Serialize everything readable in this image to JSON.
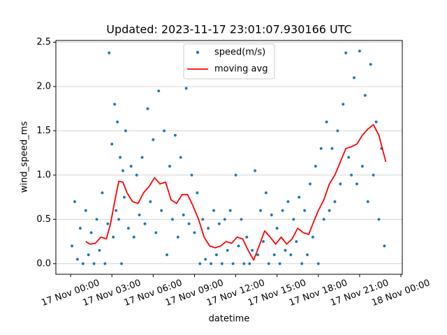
{
  "chart_data": {
    "type": "scatter",
    "title": "Updated: 2023-11-17 23:01:07.930166 UTC",
    "x_label": "datetime",
    "y_label": "wind_speed_ms",
    "xlim": [
      -1.07,
      24.1
    ],
    "ylim": [
      -0.12,
      2.52
    ],
    "xticks": [
      {
        "value": 0,
        "label": "17 Nov 00:00"
      },
      {
        "value": 3,
        "label": "17 Nov 03:00"
      },
      {
        "value": 6,
        "label": "17 Nov 06:00"
      },
      {
        "value": 9,
        "label": "17 Nov 09:00"
      },
      {
        "value": 12,
        "label": "17 Nov 12:00"
      },
      {
        "value": 15,
        "label": "17 Nov 15:00"
      },
      {
        "value": 18,
        "label": "17 Nov 18:00"
      },
      {
        "value": 21,
        "label": "17 Nov 21:00"
      },
      {
        "value": 24,
        "label": "18 Nov 00:00"
      }
    ],
    "yticks": [
      {
        "value": 0,
        "label": "0.0"
      },
      {
        "value": 0.5,
        "label": "0.5"
      },
      {
        "value": 1,
        "label": "1.0"
      },
      {
        "value": 1.5,
        "label": "1.5"
      },
      {
        "value": 2,
        "label": "2.0"
      },
      {
        "value": 2.5,
        "label": "2.5"
      }
    ],
    "grid": "y",
    "legend": "upper center",
    "series": [
      {
        "name": "speed(m/s)",
        "type": "scatter",
        "color": "#1f77b4",
        "x": [
          0.1,
          0.3,
          0.5,
          0.7,
          0.9,
          1.1,
          1.3,
          1.5,
          1.7,
          1.9,
          2.1,
          2.3,
          2.5,
          2.7,
          2.8,
          3.0,
          3.1,
          3.2,
          3.3,
          3.4,
          3.5,
          3.6,
          3.7,
          3.8,
          3.9,
          4.0,
          4.2,
          4.4,
          4.6,
          4.8,
          5.0,
          5.2,
          5.4,
          5.6,
          5.8,
          6.0,
          6.2,
          6.4,
          6.6,
          6.8,
          7.0,
          7.2,
          7.4,
          7.6,
          7.8,
          8.0,
          8.2,
          8.4,
          8.6,
          8.8,
          9.0,
          9.2,
          9.4,
          9.6,
          9.8,
          10.0,
          10.2,
          10.4,
          10.6,
          10.8,
          11.0,
          11.2,
          11.4,
          11.6,
          11.8,
          12.0,
          12.2,
          12.4,
          12.6,
          12.8,
          13.0,
          13.2,
          13.4,
          13.6,
          13.8,
          14.0,
          14.2,
          14.4,
          14.6,
          14.8,
          15.0,
          15.2,
          15.4,
          15.6,
          15.8,
          16.0,
          16.2,
          16.4,
          16.6,
          16.8,
          17.0,
          17.2,
          17.4,
          17.6,
          17.8,
          18.0,
          18.2,
          18.4,
          18.6,
          18.8,
          19.0,
          19.2,
          19.4,
          19.6,
          19.8,
          20.0,
          20.2,
          20.4,
          20.6,
          20.8,
          21.0,
          21.2,
          21.4,
          21.6,
          21.8,
          22.0,
          22.2,
          22.4,
          22.6,
          22.8
        ],
        "values": [
          0.2,
          0.7,
          0.05,
          0.4,
          0,
          0.6,
          0.1,
          0.35,
          0,
          0.5,
          0.15,
          0.8,
          0,
          0.45,
          2.38,
          1.35,
          0.3,
          1.8,
          0.6,
          1.6,
          0.5,
          1.2,
          0,
          1.05,
          0.75,
          1.5,
          0.4,
          1.1,
          0.3,
          1.0,
          0.55,
          1.2,
          0.45,
          1.75,
          0.7,
          1.4,
          0.35,
          1.95,
          0.6,
          1.5,
          0.1,
          1.1,
          0.5,
          1.45,
          0.3,
          1.2,
          0.55,
          1.98,
          0.45,
          1.0,
          0.35,
          0.8,
          0,
          0.5,
          0.05,
          0.4,
          0,
          0.6,
          0.1,
          0.45,
          0,
          0.5,
          0.15,
          0.6,
          0,
          1.0,
          0.2,
          0.5,
          0,
          0.3,
          0,
          0.15,
          1.05,
          0.1,
          0.6,
          0.25,
          0.8,
          0,
          0.55,
          0.1,
          0.4,
          0,
          0.6,
          0.15,
          0.7,
          0.1,
          0.5,
          0.25,
          0.75,
          0,
          0.6,
          0.1,
          0.9,
          0.3,
          1.1,
          0,
          1.3,
          0.5,
          1.6,
          0.6,
          1.3,
          0.7,
          1.5,
          0.9,
          1.8,
          2.38,
          1.2,
          1.0,
          2.1,
          0.9,
          2.4,
          1.1,
          1.9,
          0.7,
          2.25,
          1.0,
          1.6,
          0.5,
          1.3,
          0.2
        ]
      },
      {
        "name": "moving avg",
        "type": "line",
        "color": "#ff0000",
        "x": [
          1.1,
          1.4,
          1.8,
          2.2,
          2.6,
          2.9,
          3.2,
          3.5,
          3.8,
          4.1,
          4.5,
          4.9,
          5.3,
          5.7,
          6.1,
          6.5,
          6.9,
          7.3,
          7.7,
          8.1,
          8.5,
          8.9,
          9.3,
          9.7,
          10.1,
          10.5,
          10.9,
          11.3,
          11.7,
          12.1,
          12.5,
          12.9,
          13.3,
          13.7,
          14.1,
          14.5,
          14.9,
          15.3,
          15.7,
          16.1,
          16.5,
          16.9,
          17.3,
          17.6,
          18.0,
          18.4,
          18.8,
          19.2,
          19.6,
          20.0,
          20.4,
          20.8,
          21.2,
          21.6,
          22.0,
          22.4,
          22.9
        ],
        "values": [
          0.25,
          0.22,
          0.23,
          0.3,
          0.28,
          0.45,
          0.7,
          0.93,
          0.92,
          0.8,
          0.7,
          0.68,
          0.8,
          0.87,
          0.97,
          0.9,
          0.92,
          0.72,
          0.68,
          0.78,
          0.78,
          0.65,
          0.5,
          0.3,
          0.2,
          0.18,
          0.2,
          0.25,
          0.23,
          0.3,
          0.28,
          0.15,
          0.04,
          0.2,
          0.37,
          0.3,
          0.22,
          0.3,
          0.22,
          0.28,
          0.4,
          0.35,
          0.33,
          0.45,
          0.6,
          0.72,
          0.9,
          1.0,
          1.15,
          1.3,
          1.32,
          1.35,
          1.45,
          1.52,
          1.57,
          1.45,
          1.15
        ]
      }
    ]
  }
}
